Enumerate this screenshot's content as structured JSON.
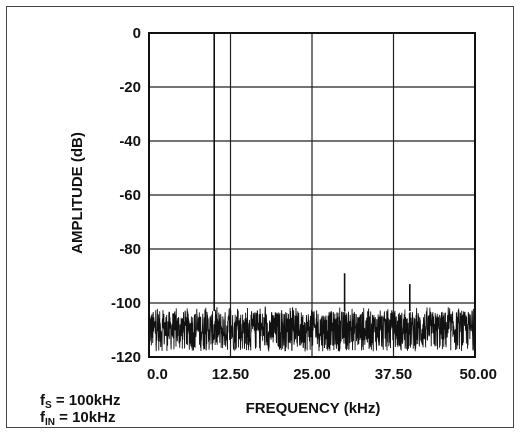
{
  "chart_data": {
    "type": "line",
    "title": "",
    "xlabel": "FREQUENCY (kHz)",
    "ylabel": "AMPLITUDE (dB)",
    "xlim": [
      0,
      50
    ],
    "ylim": [
      -120,
      0
    ],
    "grid": true,
    "x_ticks": [
      "0.0",
      "12.50",
      "25.00",
      "37.50",
      "50.00"
    ],
    "x_tick_values": [
      0,
      12.5,
      25,
      37.5,
      50
    ],
    "y_ticks": [
      "0",
      "-20",
      "-40",
      "-60",
      "-80",
      "-100",
      "-120"
    ],
    "y_tick_values": [
      0,
      -20,
      -40,
      -60,
      -80,
      -100,
      -120
    ],
    "spurs": [
      {
        "x": 10,
        "y": 0
      },
      {
        "x": 30,
        "y": -89
      },
      {
        "x": 40,
        "y": -93
      }
    ],
    "noise_floor": {
      "min": -118,
      "max": -103
    }
  },
  "annotations": {
    "fs_symbol": "f",
    "fs_sub": "S",
    "fs_value": " = 100kHz",
    "fin_symbol": "f",
    "fin_sub": "IN",
    "fin_value": " = 10kHz"
  }
}
